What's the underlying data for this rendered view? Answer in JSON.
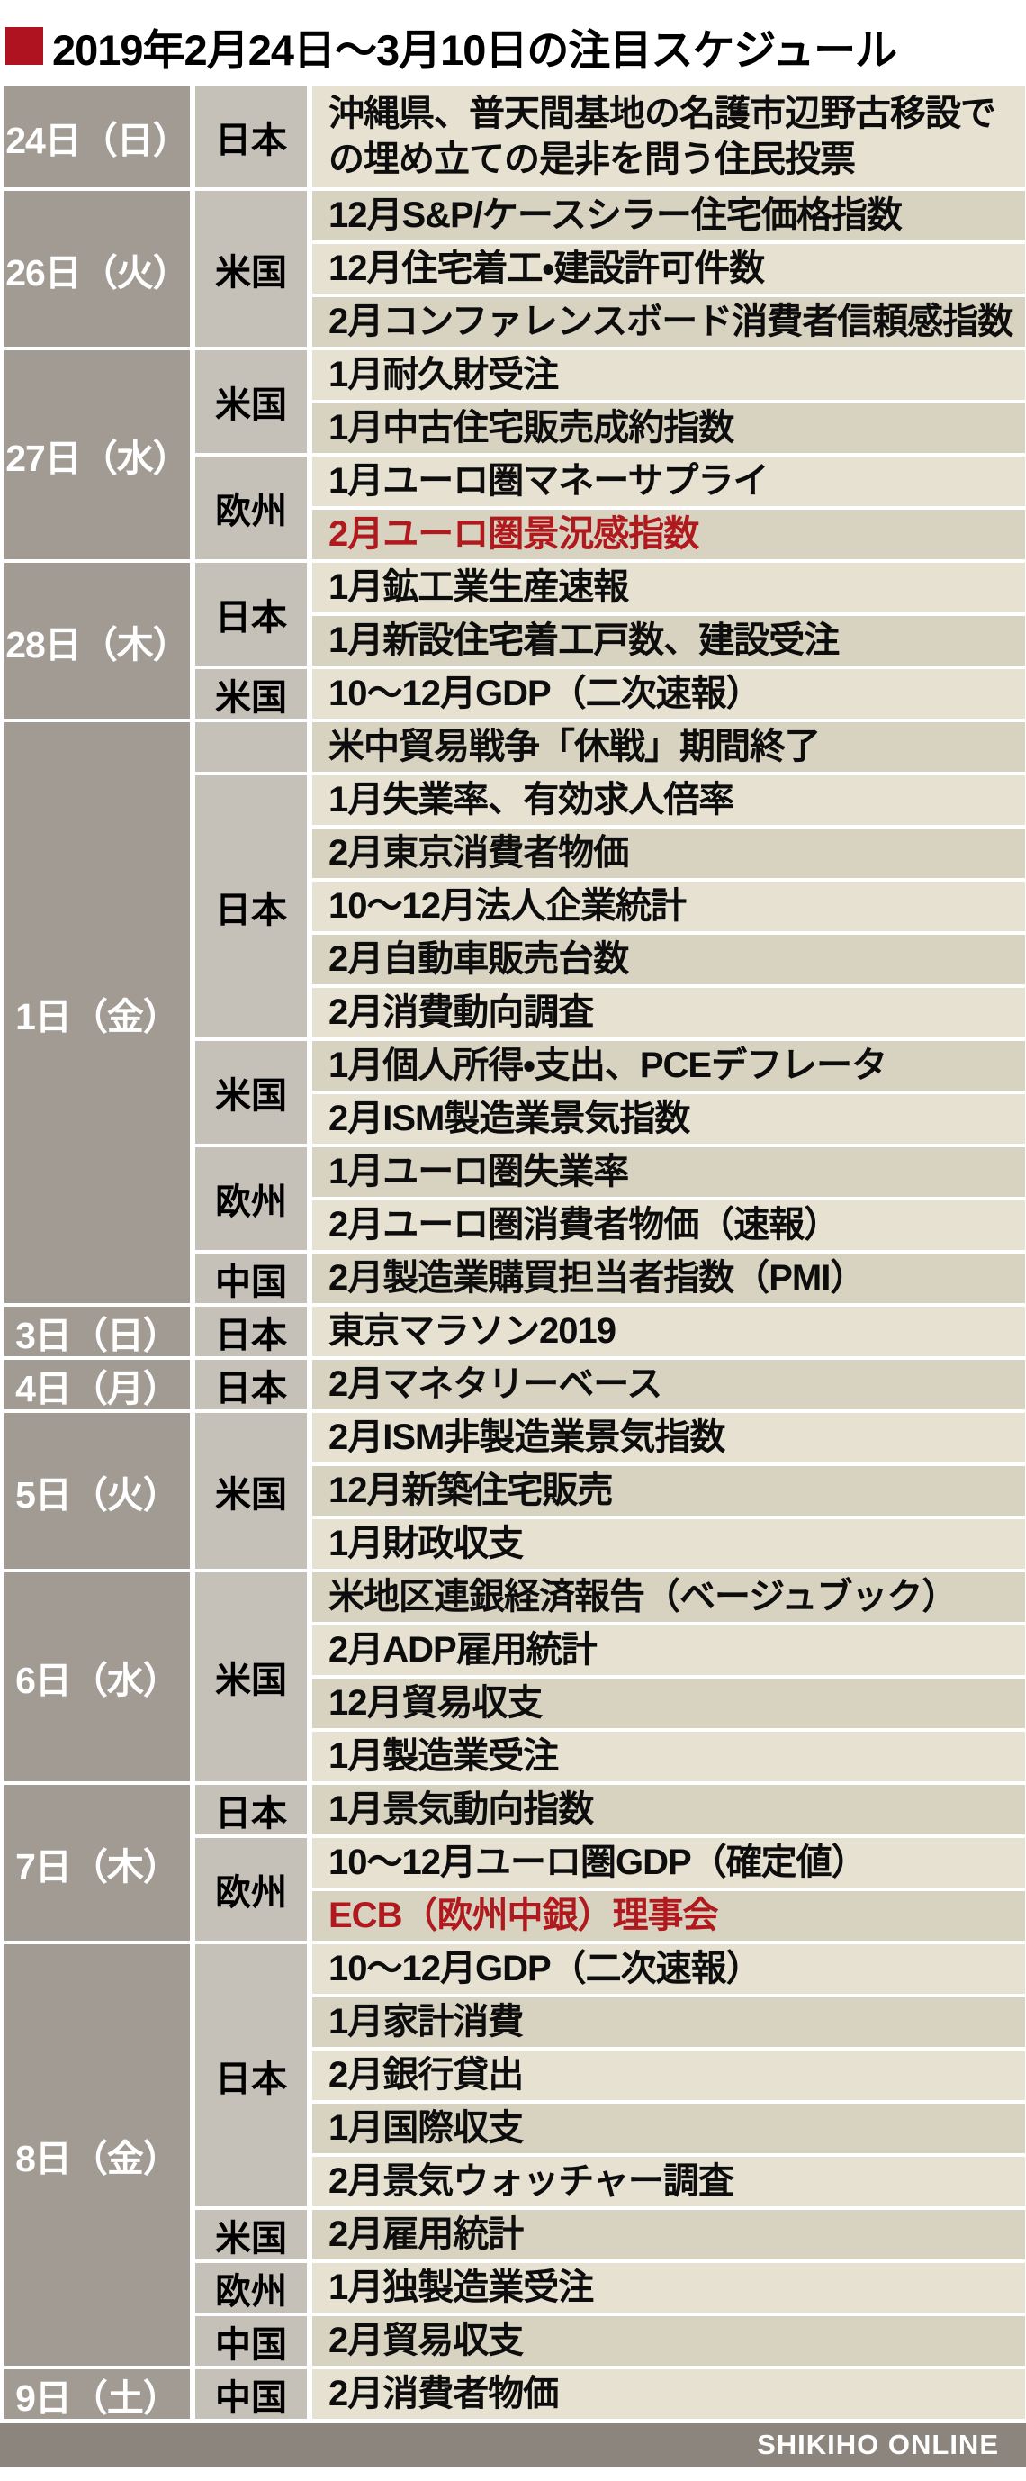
{
  "title": {
    "text": "2019年2月24日〜3月10日の注目スケジュール"
  },
  "footer": {
    "brand": "SHIKIHO ONLINE"
  },
  "colors": {
    "title_bullet": "#b01320",
    "date_cell_bg": "#a29b93",
    "region_cell_bg": "#c5c0b8",
    "event_row_light": "#e7e1d2",
    "event_row_dark": "#d8d2c0",
    "highlight_text": "#b01a1e",
    "footer_bg": "#8b857e",
    "grid_line": "#ffffff"
  },
  "schedule": [
    {
      "date": "24日（日）",
      "groups": [
        {
          "region": "日本",
          "events": [
            {
              "text": "沖縄県、普天間基地の名護市辺野古移設での埋め立ての是非を問う住民投票",
              "lines": 2
            }
          ]
        }
      ]
    },
    {
      "date": "26日（火）",
      "groups": [
        {
          "region": "米国",
          "events": [
            {
              "text": "12月S&P/ケースシラー住宅価格指数"
            },
            {
              "text": "12月住宅着工・建設許可件数"
            },
            {
              "text": "2月コンファレンスボード消費者信頼感指数"
            }
          ]
        }
      ]
    },
    {
      "date": "27日（水）",
      "groups": [
        {
          "region": "米国",
          "events": [
            {
              "text": "1月耐久財受注"
            },
            {
              "text": "1月中古住宅販売成約指数"
            }
          ]
        },
        {
          "region": "欧州",
          "events": [
            {
              "text": "1月ユーロ圏マネーサプライ"
            },
            {
              "text": "2月ユーロ圏景況感指数",
              "highlight": true
            }
          ]
        }
      ]
    },
    {
      "date": "28日（木）",
      "groups": [
        {
          "region": "日本",
          "events": [
            {
              "text": "1月鉱工業生産速報"
            },
            {
              "text": "1月新設住宅着工戸数、建設受注"
            }
          ]
        },
        {
          "region": "米国",
          "events": [
            {
              "text": "10〜12月GDP（二次速報）"
            }
          ]
        }
      ]
    },
    {
      "date": "1日（金）",
      "groups": [
        {
          "region": "",
          "events": [
            {
              "text": "米中貿易戦争「休戦」期間終了"
            }
          ]
        },
        {
          "region": "日本",
          "events": [
            {
              "text": "1月失業率、有効求人倍率"
            },
            {
              "text": "2月東京消費者物価"
            },
            {
              "text": "10〜12月法人企業統計"
            },
            {
              "text": "2月自動車販売台数"
            },
            {
              "text": "2月消費動向調査"
            }
          ]
        },
        {
          "region": "米国",
          "events": [
            {
              "text": "1月個人所得・支出、PCEデフレータ"
            },
            {
              "text": "2月ISM製造業景気指数"
            }
          ]
        },
        {
          "region": "欧州",
          "events": [
            {
              "text": "1月ユーロ圏失業率"
            },
            {
              "text": "2月ユーロ圏消費者物価（速報）"
            }
          ]
        },
        {
          "region": "中国",
          "events": [
            {
              "text": "2月製造業購買担当者指数（PMI）"
            }
          ]
        }
      ]
    },
    {
      "date": "3日（日）",
      "groups": [
        {
          "region": "日本",
          "events": [
            {
              "text": "東京マラソン2019"
            }
          ]
        }
      ]
    },
    {
      "date": "4日（月）",
      "groups": [
        {
          "region": "日本",
          "events": [
            {
              "text": "2月マネタリーベース"
            }
          ]
        }
      ]
    },
    {
      "date": "5日（火）",
      "groups": [
        {
          "region": "米国",
          "events": [
            {
              "text": "2月ISM非製造業景気指数"
            },
            {
              "text": "12月新築住宅販売"
            },
            {
              "text": "1月財政収支"
            }
          ]
        }
      ]
    },
    {
      "date": "6日（水）",
      "groups": [
        {
          "region": "米国",
          "events": [
            {
              "text": "米地区連銀経済報告（ベージュブック）"
            },
            {
              "text": "2月ADP雇用統計"
            },
            {
              "text": "12月貿易収支"
            },
            {
              "text": "1月製造業受注"
            }
          ]
        }
      ]
    },
    {
      "date": "7日（木）",
      "groups": [
        {
          "region": "日本",
          "events": [
            {
              "text": "1月景気動向指数"
            }
          ]
        },
        {
          "region": "欧州",
          "events": [
            {
              "text": "10〜12月ユーロ圏GDP（確定値）"
            },
            {
              "text": "ECB（欧州中銀）理事会",
              "highlight": true
            }
          ]
        }
      ]
    },
    {
      "date": "8日（金）",
      "groups": [
        {
          "region": "日本",
          "events": [
            {
              "text": "10〜12月GDP（二次速報）"
            },
            {
              "text": "1月家計消費"
            },
            {
              "text": "2月銀行貸出"
            },
            {
              "text": "1月国際収支"
            },
            {
              "text": "2月景気ウォッチャー調査"
            }
          ]
        },
        {
          "region": "米国",
          "events": [
            {
              "text": "2月雇用統計"
            }
          ]
        },
        {
          "region": "欧州",
          "events": [
            {
              "text": "1月独製造業受注"
            }
          ]
        },
        {
          "region": "中国",
          "events": [
            {
              "text": "2月貿易収支"
            }
          ]
        }
      ]
    },
    {
      "date": "9日（土）",
      "groups": [
        {
          "region": "中国",
          "events": [
            {
              "text": "2月消費者物価"
            }
          ]
        }
      ]
    }
  ]
}
